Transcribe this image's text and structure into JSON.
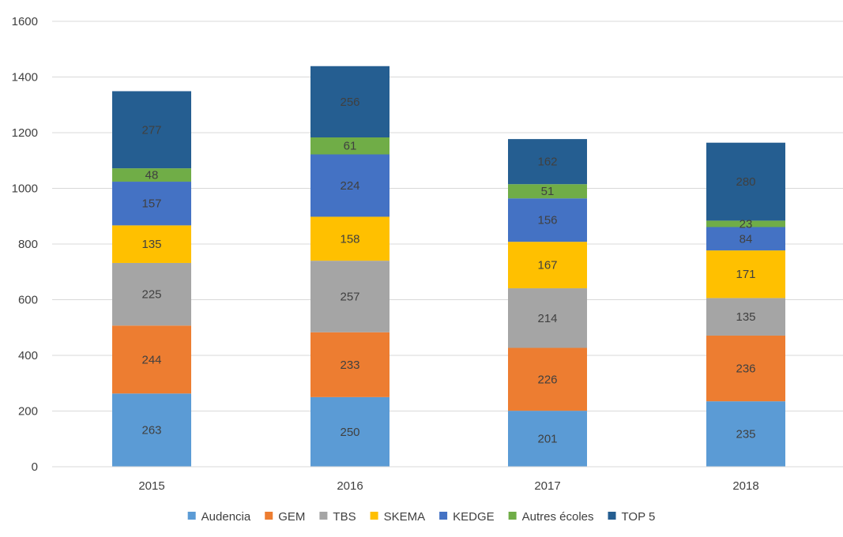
{
  "chart_data": {
    "type": "bar",
    "stacked": true,
    "categories": [
      "2015",
      "2016",
      "2017",
      "2018"
    ],
    "ylim": [
      0,
      1600
    ],
    "yticks": [
      0,
      200,
      400,
      600,
      800,
      1000,
      1200,
      1400,
      1600
    ],
    "grid": true,
    "legend_position": "bottom",
    "series": [
      {
        "name": "Audencia",
        "color": "#5B9BD5",
        "values": [
          263,
          250,
          201,
          235
        ]
      },
      {
        "name": "GEM",
        "color": "#ED7D31",
        "values": [
          244,
          233,
          226,
          236
        ]
      },
      {
        "name": "TBS",
        "color": "#A5A5A5",
        "values": [
          225,
          257,
          214,
          135
        ]
      },
      {
        "name": "SKEMA",
        "color": "#FFC000",
        "values": [
          135,
          158,
          167,
          171
        ]
      },
      {
        "name": "KEDGE",
        "color": "#4472C4",
        "values": [
          157,
          224,
          156,
          84
        ]
      },
      {
        "name": "Autres écoles",
        "color": "#70AD47",
        "values": [
          48,
          61,
          51,
          23
        ]
      },
      {
        "name": "TOP 5",
        "color": "#255E91",
        "values": [
          277,
          256,
          162,
          280
        ]
      }
    ]
  }
}
